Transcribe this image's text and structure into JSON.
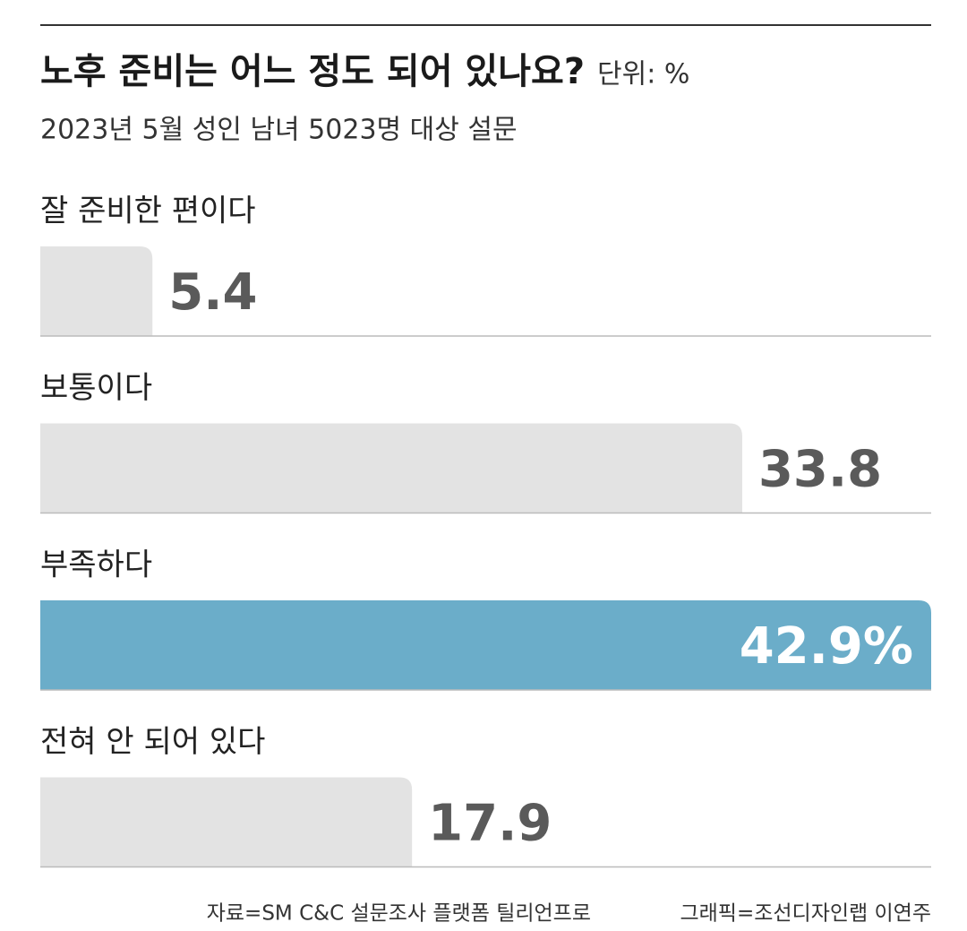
{
  "chart_data": {
    "type": "bar",
    "orientation": "horizontal",
    "title": "노후 준비는 어느 정도 되어 있나요?",
    "unit": "단위: %",
    "subtitle": "2023년 5월 성인 남녀 5023명 대상 설문",
    "categories": [
      "잘 준비한 편이다",
      "보통이다",
      "부족하다",
      "전혀 안 되어 있다"
    ],
    "values": [
      5.4,
      33.8,
      42.9,
      17.9
    ],
    "value_labels": [
      "5.4",
      "33.8",
      "42.9%",
      "17.9"
    ],
    "colors": [
      "#e3e3e3",
      "#e3e3e3",
      "#6badc9",
      "#e3e3e3"
    ],
    "source": "자료=SM C&C 설문조사 플랫폼 틸리언프로",
    "credit": "그래픽=조선디자인랩 이연주"
  }
}
